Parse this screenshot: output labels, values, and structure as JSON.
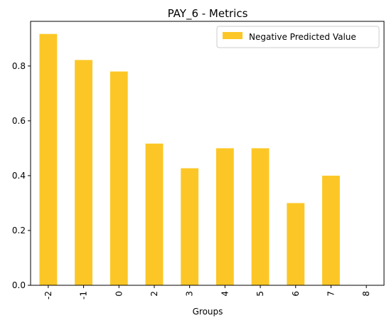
{
  "chart_data": {
    "type": "bar",
    "title": "PAY_6 - Metrics",
    "xlabel": "Groups",
    "ylabel": "",
    "categories": [
      "-2",
      "-1",
      "0",
      "2",
      "3",
      "4",
      "5",
      "6",
      "7",
      "8"
    ],
    "series": [
      {
        "name": "Negative Predicted Value",
        "color": "#fcc726",
        "values": [
          0.917,
          0.822,
          0.78,
          0.517,
          0.427,
          0.5,
          0.5,
          0.3,
          0.4,
          0.0
        ]
      }
    ],
    "ylim": [
      0,
      0.963
    ],
    "yticks": [
      "0.0",
      "0.2",
      "0.4",
      "0.6",
      "0.8"
    ],
    "ytick_values": [
      0,
      0.2,
      0.4,
      0.6,
      0.8
    ],
    "grid": false,
    "legend_position": "top-right"
  }
}
